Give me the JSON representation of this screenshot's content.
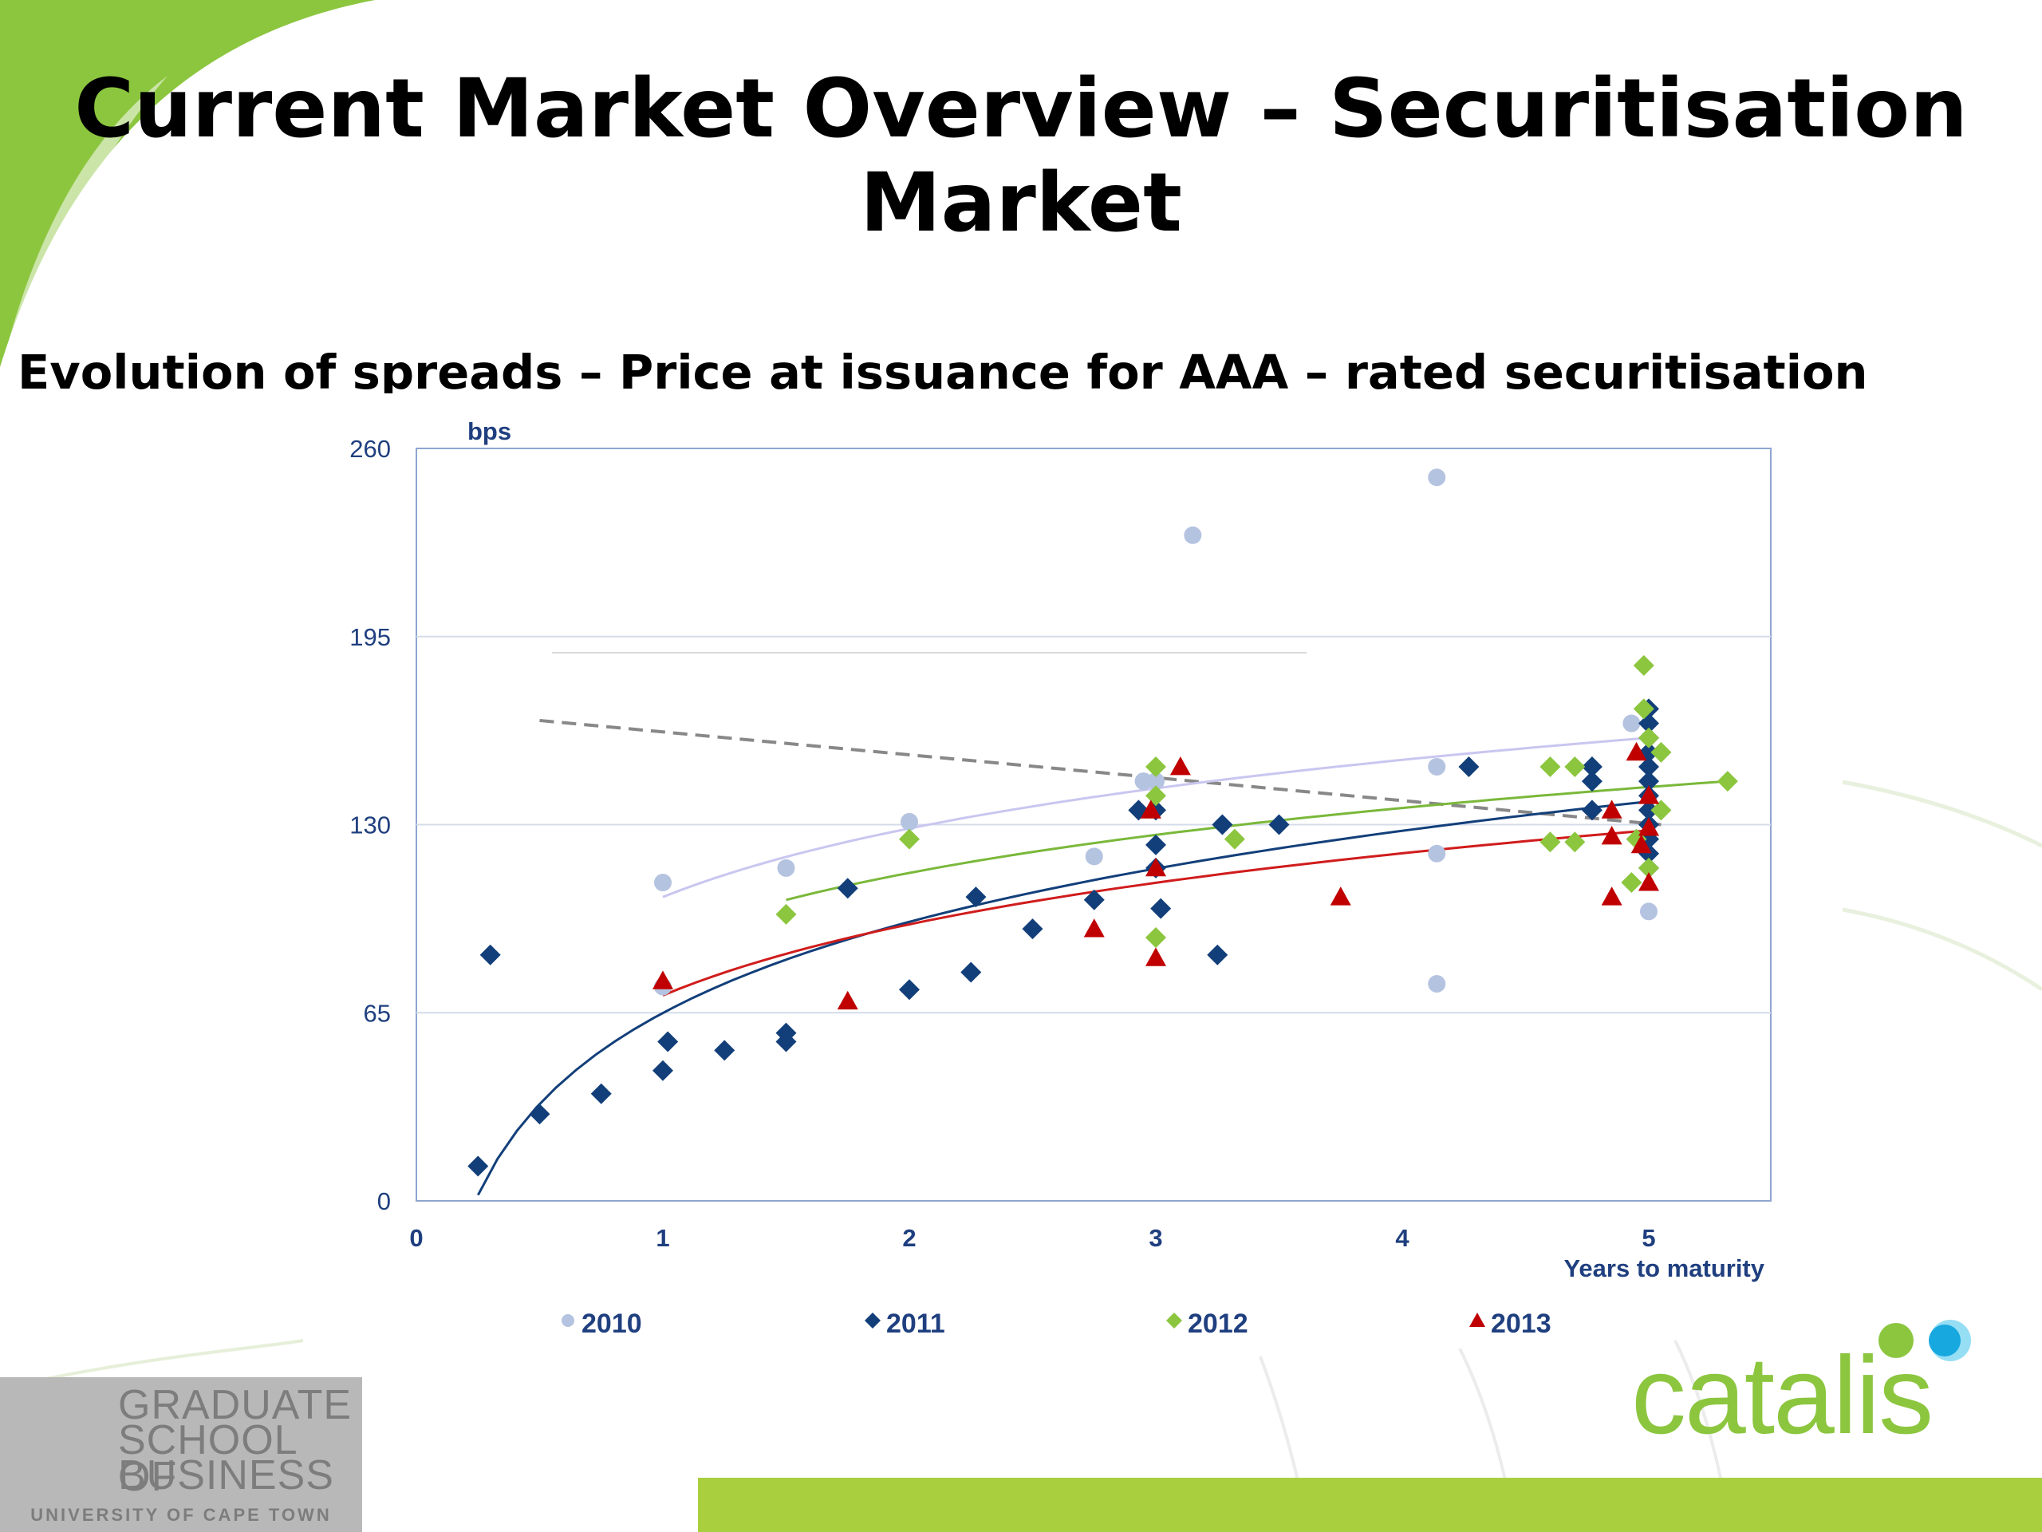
{
  "slide": {
    "title_line1": "Current Market Overview – Securitisation",
    "title_line2": "Market",
    "subtitle": "Evolution of spreads – Price at issuance for AAA – rated securitisation"
  },
  "logos": {
    "gsb_line1": "GRADUATE",
    "gsb_line2": "SCHOOL OF",
    "gsb_line3": "BUSINESS",
    "gsb_university": "UNIVERSITY OF CAPE TOWN",
    "catalis": "catalis"
  },
  "colors": {
    "brand_green": "#8cc63f",
    "axis_blue": "#1f3f7f",
    "series_2010": "#b4c3e0",
    "series_2011": "#123f7a",
    "series_2012": "#8cc63f",
    "series_2013": "#c00000"
  },
  "chart_data": {
    "type": "scatter",
    "ylabel": "bps",
    "xlabel": "Years to maturity",
    "xlim": [
      0,
      5.5
    ],
    "ylim": [
      0,
      260
    ],
    "xticks": [
      0,
      1,
      2,
      3,
      4,
      5
    ],
    "yticks": [
      0,
      65,
      130,
      195,
      260
    ],
    "grid": "horizontal",
    "legend_position": "bottom",
    "series": [
      {
        "name": "2010",
        "marker": "circle",
        "color": "#b4c3e0",
        "points": [
          [
            1.0,
            110
          ],
          [
            1.0,
            74
          ],
          [
            1.5,
            115
          ],
          [
            2.0,
            131
          ],
          [
            2.75,
            119
          ],
          [
            2.95,
            145
          ],
          [
            3.0,
            145
          ],
          [
            3.15,
            230
          ],
          [
            4.14,
            250
          ],
          [
            4.14,
            150
          ],
          [
            4.14,
            120
          ],
          [
            4.14,
            75
          ],
          [
            4.93,
            165
          ],
          [
            5.0,
            100
          ]
        ],
        "trend": {
          "kind": "log",
          "x_range": [
            1.0,
            5.0
          ],
          "y_start": 105,
          "y_end": 160
        }
      },
      {
        "name": "2011",
        "marker": "diamond",
        "color": "#123f7a",
        "points": [
          [
            0.25,
            12
          ],
          [
            0.3,
            85
          ],
          [
            0.5,
            30
          ],
          [
            0.75,
            37
          ],
          [
            1.0,
            45
          ],
          [
            1.02,
            55
          ],
          [
            1.25,
            52
          ],
          [
            1.5,
            58
          ],
          [
            1.5,
            55
          ],
          [
            1.75,
            108
          ],
          [
            2.0,
            73
          ],
          [
            2.25,
            79
          ],
          [
            2.27,
            105
          ],
          [
            2.5,
            94
          ],
          [
            2.75,
            104
          ],
          [
            2.93,
            135
          ],
          [
            3.0,
            135
          ],
          [
            3.0,
            123
          ],
          [
            3.0,
            115
          ],
          [
            3.02,
            101
          ],
          [
            3.25,
            85
          ],
          [
            3.27,
            130
          ],
          [
            3.5,
            130
          ],
          [
            4.27,
            150
          ],
          [
            4.77,
            150
          ],
          [
            4.77,
            145
          ],
          [
            4.77,
            135
          ],
          [
            5.0,
            170
          ],
          [
            5.0,
            165
          ],
          [
            5.0,
            160
          ],
          [
            5.0,
            155
          ],
          [
            5.0,
            150
          ],
          [
            5.0,
            145
          ],
          [
            5.0,
            140
          ],
          [
            5.0,
            135
          ],
          [
            5.0,
            130
          ],
          [
            5.0,
            125
          ],
          [
            5.0,
            120
          ],
          [
            5.0,
            115
          ]
        ],
        "trend": {
          "kind": "log",
          "x_range": [
            0.25,
            5.0
          ],
          "y_start": 2,
          "y_end": 138
        }
      },
      {
        "name": "2012",
        "marker": "diamond",
        "color": "#8cc63f",
        "points": [
          [
            1.5,
            99
          ],
          [
            2.0,
            125
          ],
          [
            3.0,
            150
          ],
          [
            3.0,
            140
          ],
          [
            3.0,
            91
          ],
          [
            3.32,
            125
          ],
          [
            4.6,
            150
          ],
          [
            4.6,
            124
          ],
          [
            4.7,
            150
          ],
          [
            4.7,
            124
          ],
          [
            4.93,
            110
          ],
          [
            4.95,
            125
          ],
          [
            4.98,
            185
          ],
          [
            4.98,
            170
          ],
          [
            5.0,
            160
          ],
          [
            5.0,
            115
          ],
          [
            5.05,
            155
          ],
          [
            5.05,
            135
          ],
          [
            5.32,
            145
          ]
        ],
        "trend": {
          "kind": "log",
          "x_range": [
            1.5,
            5.32
          ],
          "y_start": 104,
          "y_end": 145
        }
      },
      {
        "name": "2013",
        "marker": "triangle",
        "color": "#c00000",
        "points": [
          [
            1.0,
            76
          ],
          [
            1.75,
            69
          ],
          [
            2.75,
            94
          ],
          [
            2.98,
            135
          ],
          [
            3.0,
            115
          ],
          [
            3.0,
            84
          ],
          [
            3.1,
            150
          ],
          [
            3.75,
            105
          ],
          [
            4.85,
            135
          ],
          [
            4.85,
            126
          ],
          [
            4.85,
            105
          ],
          [
            4.95,
            155
          ],
          [
            4.97,
            123
          ],
          [
            5.0,
            140
          ],
          [
            5.0,
            129
          ],
          [
            5.0,
            110
          ]
        ],
        "trend": {
          "kind": "log",
          "x_range": [
            1.0,
            5.0
          ],
          "y_start": 71,
          "y_end": 128
        }
      }
    ],
    "reference_line": {
      "style": "dashed",
      "color": "#888888",
      "x_range": [
        0.5,
        5.05
      ],
      "y_start": 166,
      "y_end": 130
    }
  }
}
